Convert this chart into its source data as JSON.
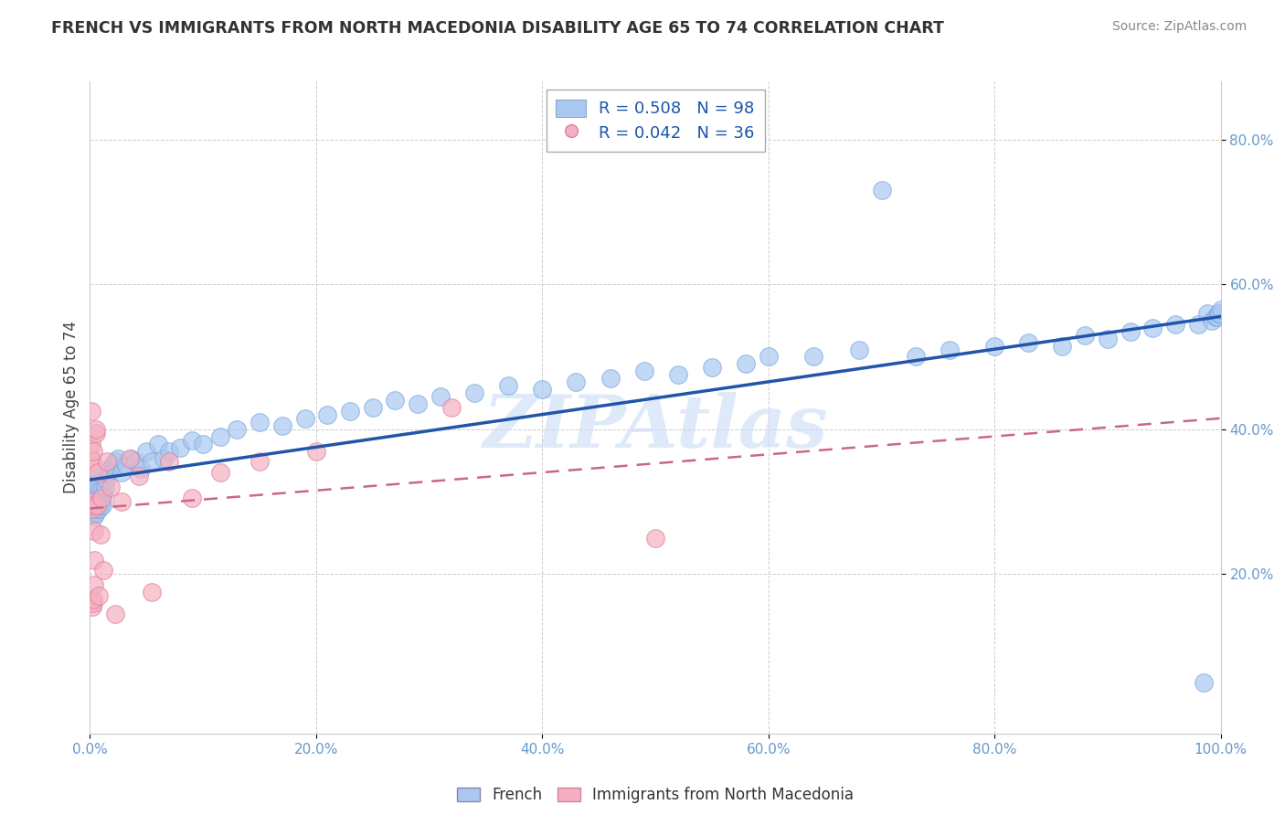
{
  "title": "FRENCH VS IMMIGRANTS FROM NORTH MACEDONIA DISABILITY AGE 65 TO 74 CORRELATION CHART",
  "source": "Source: ZipAtlas.com",
  "ylabel": "Disability Age 65 to 74",
  "xlim": [
    0.0,
    1.0
  ],
  "ylim": [
    -0.02,
    0.88
  ],
  "yticks": [
    0.2,
    0.4,
    0.6,
    0.8
  ],
  "ytick_labels": [
    "20.0%",
    "40.0%",
    "60.0%",
    "80.0%"
  ],
  "xticks": [
    0.0,
    0.2,
    0.4,
    0.6,
    0.8,
    1.0
  ],
  "xtick_labels": [
    "0.0%",
    "20.0%",
    "40.0%",
    "60.0%",
    "80.0%",
    "100.0%"
  ],
  "french_R": 0.508,
  "french_N": 98,
  "macedonia_R": 0.042,
  "macedonia_N": 36,
  "french_color": "#aac8f0",
  "french_edge_color": "#7aaae0",
  "french_line_color": "#2255aa",
  "macedonia_color": "#f4b0c0",
  "macedonia_edge_color": "#e080a0",
  "macedonia_line_color": "#cc6688",
  "legend_label_french": "French",
  "legend_label_macedonia": "Immigrants from North Macedonia",
  "watermark": "ZIPAtlas",
  "background_color": "#ffffff",
  "grid_color": "#cccccc",
  "tick_color": "#6699cc",
  "french_x": [
    0.001,
    0.001,
    0.002,
    0.002,
    0.002,
    0.002,
    0.003,
    0.003,
    0.003,
    0.003,
    0.003,
    0.004,
    0.004,
    0.004,
    0.005,
    0.005,
    0.005,
    0.005,
    0.005,
    0.006,
    0.006,
    0.006,
    0.006,
    0.007,
    0.007,
    0.007,
    0.008,
    0.008,
    0.008,
    0.009,
    0.009,
    0.01,
    0.01,
    0.011,
    0.012,
    0.013,
    0.014,
    0.016,
    0.018,
    0.02,
    0.022,
    0.025,
    0.028,
    0.032,
    0.036,
    0.04,
    0.045,
    0.05,
    0.055,
    0.06,
    0.065,
    0.07,
    0.08,
    0.09,
    0.1,
    0.115,
    0.13,
    0.15,
    0.17,
    0.19,
    0.21,
    0.23,
    0.25,
    0.27,
    0.29,
    0.31,
    0.34,
    0.37,
    0.4,
    0.43,
    0.46,
    0.49,
    0.52,
    0.55,
    0.58,
    0.6,
    0.64,
    0.68,
    0.7,
    0.73,
    0.76,
    0.8,
    0.83,
    0.86,
    0.88,
    0.9,
    0.92,
    0.94,
    0.96,
    0.98,
    0.985,
    0.988,
    0.992,
    0.995,
    0.997,
    0.998,
    0.999,
    1.0
  ],
  "french_y": [
    0.295,
    0.31,
    0.285,
    0.3,
    0.31,
    0.32,
    0.29,
    0.295,
    0.305,
    0.315,
    0.325,
    0.28,
    0.3,
    0.32,
    0.285,
    0.295,
    0.305,
    0.315,
    0.33,
    0.29,
    0.3,
    0.31,
    0.325,
    0.295,
    0.305,
    0.32,
    0.29,
    0.3,
    0.315,
    0.295,
    0.31,
    0.3,
    0.315,
    0.295,
    0.31,
    0.32,
    0.33,
    0.34,
    0.345,
    0.35,
    0.355,
    0.36,
    0.34,
    0.35,
    0.36,
    0.355,
    0.345,
    0.37,
    0.355,
    0.38,
    0.36,
    0.37,
    0.375,
    0.385,
    0.38,
    0.39,
    0.4,
    0.41,
    0.405,
    0.415,
    0.42,
    0.425,
    0.43,
    0.44,
    0.435,
    0.445,
    0.45,
    0.46,
    0.455,
    0.465,
    0.47,
    0.48,
    0.475,
    0.485,
    0.49,
    0.5,
    0.5,
    0.51,
    0.73,
    0.5,
    0.51,
    0.515,
    0.52,
    0.515,
    0.53,
    0.525,
    0.535,
    0.54,
    0.545,
    0.545,
    0.05,
    0.56,
    0.55,
    0.555,
    0.555,
    0.56,
    0.56,
    0.565
  ],
  "macedonia_x": [
    0.001,
    0.001,
    0.001,
    0.002,
    0.002,
    0.002,
    0.002,
    0.003,
    0.003,
    0.003,
    0.003,
    0.004,
    0.004,
    0.004,
    0.005,
    0.005,
    0.006,
    0.007,
    0.008,
    0.009,
    0.01,
    0.012,
    0.015,
    0.018,
    0.022,
    0.028,
    0.035,
    0.043,
    0.055,
    0.07,
    0.09,
    0.115,
    0.15,
    0.2,
    0.32,
    0.5
  ],
  "macedonia_y": [
    0.36,
    0.38,
    0.425,
    0.29,
    0.355,
    0.3,
    0.155,
    0.37,
    0.295,
    0.16,
    0.165,
    0.26,
    0.22,
    0.185,
    0.395,
    0.4,
    0.295,
    0.34,
    0.17,
    0.255,
    0.305,
    0.205,
    0.355,
    0.32,
    0.145,
    0.3,
    0.36,
    0.335,
    0.175,
    0.355,
    0.305,
    0.34,
    0.355,
    0.37,
    0.43,
    0.25
  ]
}
